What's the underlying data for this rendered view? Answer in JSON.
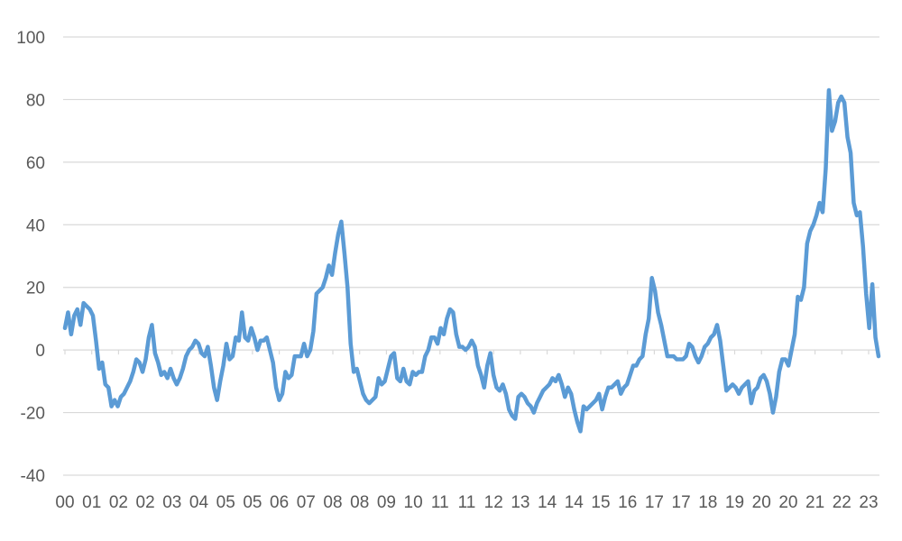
{
  "chart_data": {
    "type": "line",
    "title": "",
    "xlabel": "",
    "ylabel": "",
    "ylim": [
      -40,
      100
    ],
    "yticks": [
      100,
      80,
      60,
      40,
      20,
      0,
      -20,
      -40
    ],
    "grid": true,
    "legend": "none",
    "x_tick_labels": [
      "00",
      "01",
      "02",
      "02",
      "03",
      "04",
      "05",
      "05",
      "06",
      "07",
      "08",
      "08",
      "09",
      "10",
      "11",
      "11",
      "12",
      "13",
      "14",
      "14",
      "15",
      "16",
      "17",
      "17",
      "18",
      "19",
      "20",
      "20",
      "21",
      "22",
      "23"
    ],
    "series": [
      {
        "color": "#5b9bd5",
        "values": [
          7,
          12,
          5,
          11,
          13,
          8,
          15,
          14,
          13,
          11,
          3,
          -6,
          -4,
          -11,
          -12,
          -18,
          -16,
          -18,
          -15,
          -14,
          -12,
          -10,
          -7,
          -3,
          -4,
          -7,
          -3,
          4,
          8,
          -1,
          -4,
          -8,
          -7,
          -9,
          -6,
          -9,
          -11,
          -9,
          -6,
          -2,
          0,
          1,
          3,
          2,
          -1,
          -2,
          1,
          -5,
          -12,
          -16,
          -10,
          -5,
          2,
          -3,
          -2,
          4,
          3,
          12,
          4,
          3,
          7,
          4,
          0,
          3,
          3,
          4,
          0,
          -4,
          -12,
          -16,
          -14,
          -7,
          -9,
          -8,
          -2,
          -2,
          -2,
          2,
          -2,
          0,
          6,
          18,
          19,
          20,
          23,
          27,
          24,
          31,
          37,
          41,
          31,
          20,
          2,
          -7,
          -6,
          -10,
          -14,
          -16,
          -17,
          -16,
          -15,
          -9,
          -11,
          -10,
          -6,
          -2,
          -1,
          -9,
          -10,
          -6,
          -10,
          -11,
          -7,
          -8,
          -7,
          -7,
          -2,
          0,
          4,
          4,
          2,
          7,
          5,
          10,
          13,
          12,
          5,
          1,
          1,
          0,
          1,
          3,
          1,
          -5,
          -8,
          -12,
          -5,
          -1,
          -8,
          -12,
          -13,
          -11,
          -14,
          -19,
          -21,
          -22,
          -15,
          -14,
          -15,
          -17,
          -18,
          -20,
          -17,
          -15,
          -13,
          -12,
          -11,
          -9,
          -10,
          -8,
          -11,
          -15,
          -12,
          -14,
          -19,
          -23,
          -26,
          -18,
          -19,
          -18,
          -17,
          -16,
          -14,
          -19,
          -15,
          -12,
          -12,
          -11,
          -10,
          -14,
          -12,
          -11,
          -8,
          -5,
          -5,
          -3,
          -2,
          5,
          10,
          23,
          19,
          12,
          8,
          3,
          -2,
          -2,
          -2,
          -3,
          -3,
          -3,
          -2,
          2,
          1,
          -2,
          -4,
          -2,
          1,
          2,
          4,
          5,
          8,
          3,
          -5,
          -13,
          -12,
          -11,
          -12,
          -14,
          -12,
          -11,
          -10,
          -17,
          -13,
          -12,
          -9,
          -8,
          -10,
          -14,
          -20,
          -15,
          -7,
          -3,
          -3,
          -5,
          0,
          5,
          17,
          16,
          20,
          34,
          38,
          40,
          43,
          47,
          44,
          58,
          83,
          70,
          73,
          79,
          81,
          79,
          68,
          63,
          47,
          43,
          44,
          33,
          18,
          7,
          21,
          4,
          -2
        ]
      }
    ]
  }
}
